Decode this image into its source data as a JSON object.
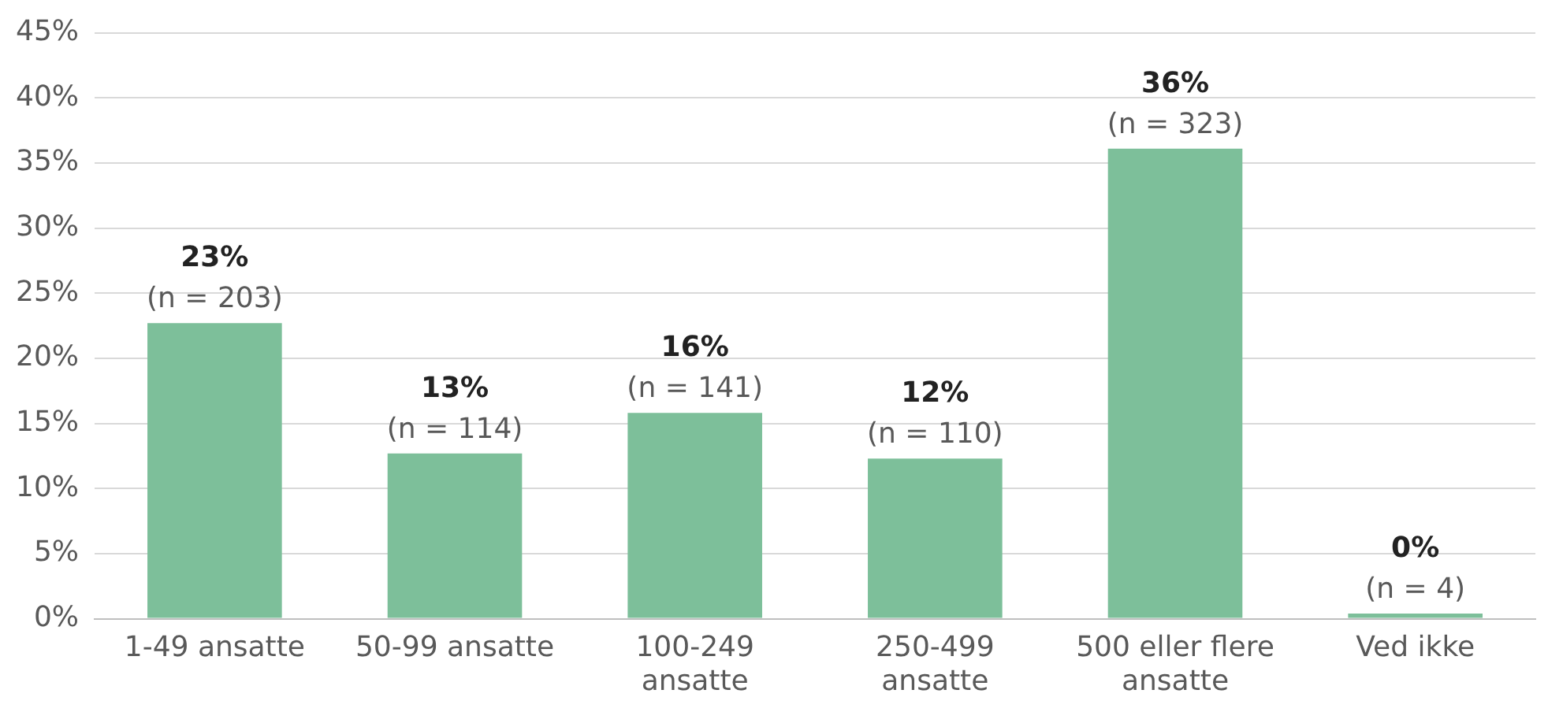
{
  "chart_data": {
    "type": "bar",
    "categories": [
      "1-49 ansatte",
      "50-99 ansatte",
      "100-249 ansatte",
      "250-499 ansatte",
      "500 eller flere ansatte",
      "Ved ikke"
    ],
    "values": [
      22.7,
      12.7,
      15.8,
      12.3,
      36.1,
      0.4
    ],
    "value_labels": [
      "23%\n(n = 203)",
      "13%\n(n = 114)",
      "16%\n(n = 141)",
      "12%\n(n = 110)",
      "36%\n(n = 323)",
      "0%\n(n = 4)"
    ],
    "color": "#7dbf9a",
    "ylim": [
      0,
      45
    ],
    "yticks": [
      {
        "value": 0,
        "label": "0%"
      },
      {
        "value": 5,
        "label": "5%"
      },
      {
        "value": 10,
        "label": "10%"
      },
      {
        "value": 15,
        "label": "15%"
      },
      {
        "value": 20,
        "label": "20%"
      },
      {
        "value": 25,
        "label": "25%"
      },
      {
        "value": 30,
        "label": "30%"
      },
      {
        "value": 35,
        "label": "35%"
      },
      {
        "value": 40,
        "label": "40%"
      },
      {
        "value": 45,
        "label": "45%"
      }
    ],
    "grid": "y",
    "legend": false
  }
}
